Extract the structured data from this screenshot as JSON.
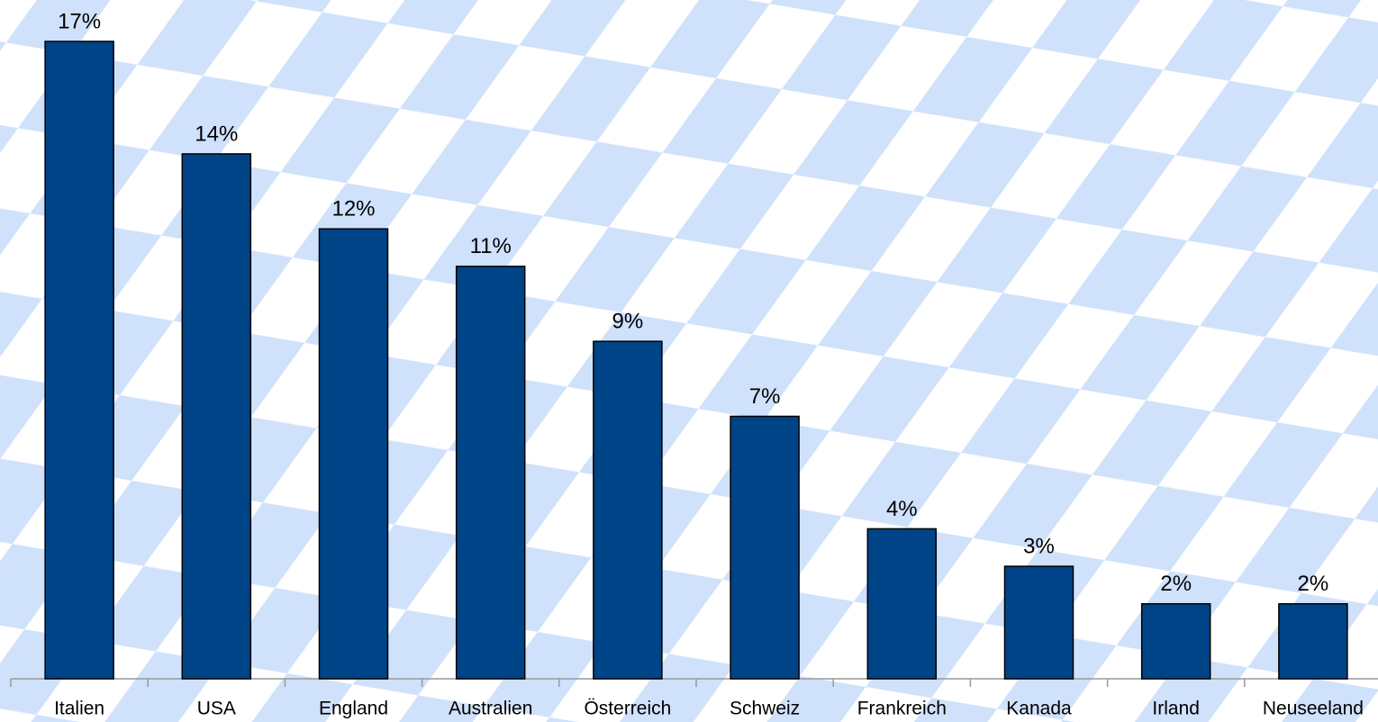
{
  "chart_data": {
    "type": "bar",
    "categories": [
      "Italien",
      "USA",
      "England",
      "Australien",
      "Österreich",
      "Schweiz",
      "Frankreich",
      "Kanada",
      "Irland",
      "Neuseeland"
    ],
    "values": [
      17,
      14,
      12,
      11,
      9,
      7,
      4,
      3,
      2,
      2
    ],
    "value_labels": [
      "17%",
      "14%",
      "12%",
      "11%",
      "9%",
      "7%",
      "4%",
      "3%",
      "2%",
      "2%"
    ],
    "color": "#004488"
  }
}
